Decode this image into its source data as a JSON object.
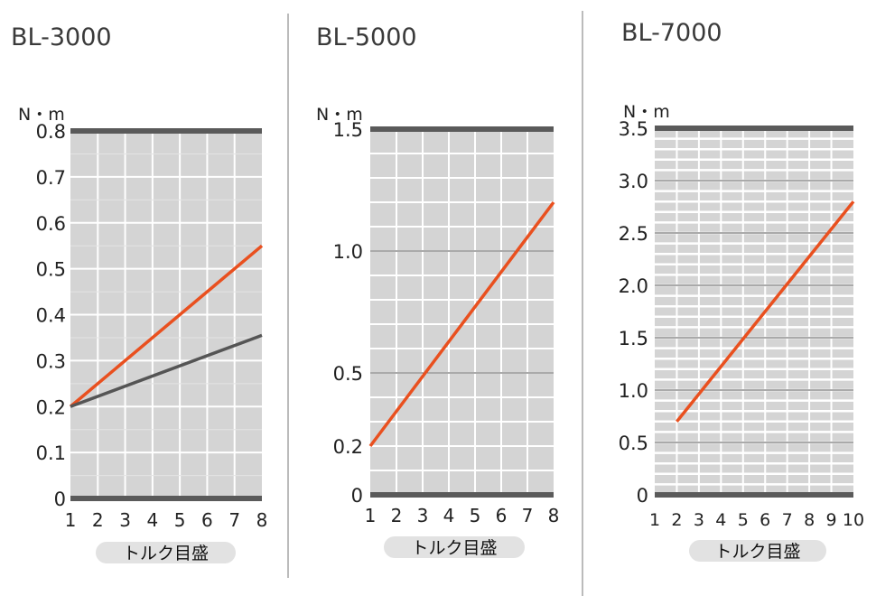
{
  "chart_data": [
    {
      "type": "line",
      "title": "BL-3000",
      "yunit": "N・m",
      "xlabel": "トルク目盛",
      "xlim": [
        1,
        8
      ],
      "ylim": [
        0,
        0.8
      ],
      "xticks": [
        "1",
        "2",
        "3",
        "4",
        "5",
        "6",
        "7",
        "8"
      ],
      "yticks": [
        "0",
        "0.1",
        "0.2",
        "0.3",
        "0.4",
        "0.5",
        "0.6",
        "0.7",
        "0.8"
      ],
      "series": [
        {
          "color": "#e9501f",
          "x": [
            1,
            8
          ],
          "y": [
            0.2,
            0.55
          ]
        },
        {
          "color": "#555555",
          "x": [
            1,
            8
          ],
          "y": [
            0.2,
            0.355
          ]
        }
      ]
    },
    {
      "type": "line",
      "title": "BL-5000",
      "yunit": "N・m",
      "xlabel": "トルク目盛",
      "xlim": [
        1,
        8
      ],
      "ylim": [
        0,
        1.5
      ],
      "xticks": [
        "1",
        "2",
        "3",
        "4",
        "5",
        "6",
        "7",
        "8"
      ],
      "yticks": [
        "0",
        "0.2",
        "0.5",
        "1.0",
        "1.5"
      ],
      "series": [
        {
          "color": "#e9501f",
          "x": [
            1,
            8
          ],
          "y": [
            0.2,
            1.2
          ]
        }
      ]
    },
    {
      "type": "line",
      "title": "BL-7000",
      "yunit": "N・m",
      "xlabel": "トルク目盛",
      "xlim": [
        1,
        10
      ],
      "ylim": [
        0,
        3.5
      ],
      "xticks": [
        "1",
        "2",
        "3",
        "4",
        "5",
        "6",
        "7",
        "8",
        "9",
        "10"
      ],
      "yticks": [
        "0",
        "0.5",
        "1.0",
        "1.5",
        "2.0",
        "2.5",
        "3.0",
        "3.5"
      ],
      "series": [
        {
          "color": "#e9501f",
          "x": [
            2,
            10
          ],
          "y": [
            0.7,
            2.8
          ]
        }
      ]
    }
  ],
  "colors": {
    "plot_bg": "#d4d4d4",
    "grid": "#ffffff",
    "major_grid": "#555555",
    "frame": "#5a5a5a",
    "text": "#3a3a3a",
    "pill_bg": "#e2e2e2",
    "divider": "#bbbbbb"
  }
}
